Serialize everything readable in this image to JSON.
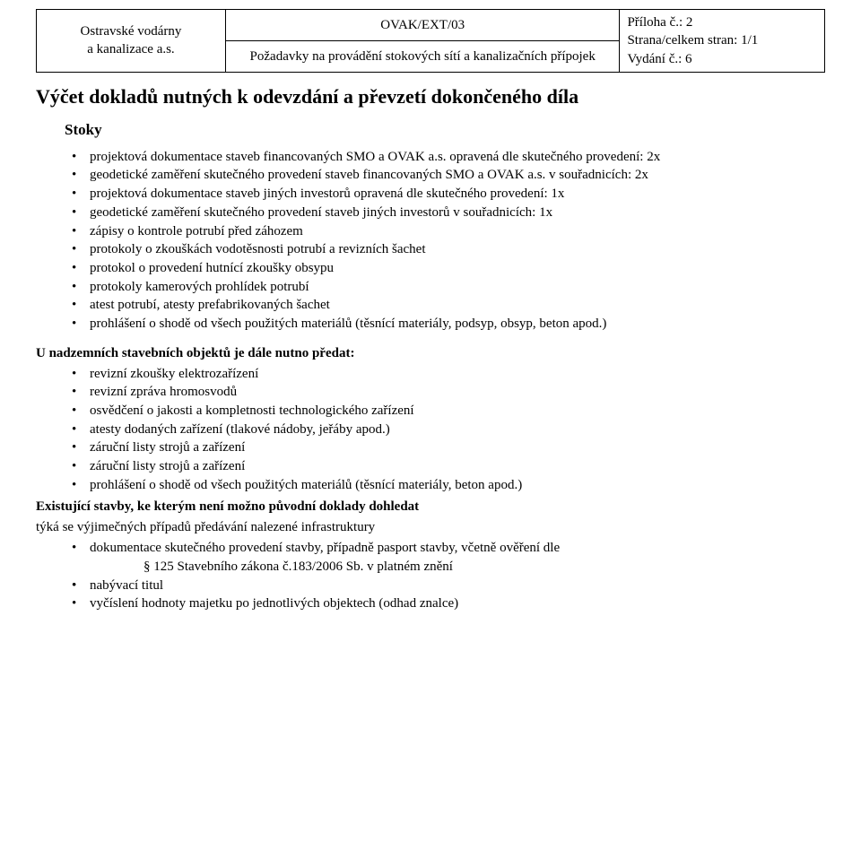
{
  "header": {
    "org_line1": "Ostravské vodárny",
    "org_line2": "a kanalizace a.s.",
    "code": "OVAK/EXT/03",
    "subtitle": "Požadavky na provádění stokových sítí a kanalizačních přípojek",
    "meta_line1": "Příloha č.: 2",
    "meta_line2": "Strana/celkem stran: 1/1",
    "meta_line3": "Vydání č.: 6"
  },
  "title": "Výčet dokladů nutných k odevzdání a převzetí dokončeného díla",
  "section1": {
    "heading": "Stoky",
    "items": [
      "projektová dokumentace staveb financovaných SMO a OVAK a.s. opravená dle skutečného provedení: 2x",
      "geodetické zaměření skutečného provedení staveb financovaných SMO a OVAK a.s. v souřadnicích: 2x",
      "projektová dokumentace staveb jiných investorů opravená dle skutečného provedení: 1x",
      "geodetické zaměření skutečného provedení staveb jiných investorů v souřadnicích: 1x",
      "zápisy o kontrole potrubí před záhozem",
      "protokoly o zkouškách vodotěsnosti potrubí a revizních šachet",
      "protokol o provedení hutnící zkoušky obsypu",
      "protokoly kamerových prohlídek potrubí",
      "atest potrubí, atesty prefabrikovaných šachet",
      "prohlášení o shodě od všech použitých materiálů (těsnící materiály, podsyp, obsyp, beton apod.)"
    ]
  },
  "section2": {
    "heading": "U nadzemních stavebních objektů je dále nutno předat:",
    "items": [
      "revizní zkoušky elektrozařízení",
      "revizní zpráva hromosvodů",
      "osvědčení o jakosti a kompletnosti technologického zařízení",
      "atesty dodaných zařízení (tlakové nádoby, jeřáby apod.)",
      "záruční listy strojů a zařízení",
      "záruční listy strojů a zařízení",
      "prohlášení o shodě od všech použitých materiálů (těsnící materiály, beton apod.)"
    ]
  },
  "section3": {
    "heading": "Existující stavby, ke kterým není možno původní doklady dohledat",
    "intro": "týká se výjimečných případů předávání nalezené infrastruktury",
    "item1_a": "dokumentace skutečného provedení stavby, případně pasport stavby, včetně ověření dle",
    "item1_b": "§ 125 Stavebního zákona č.183/2006 Sb. v platném znění",
    "item2": "",
    "item3": "nabývací titul",
    "item4": "vyčíslení hodnoty majetku po jednotlivých objektech (odhad znalce)"
  }
}
